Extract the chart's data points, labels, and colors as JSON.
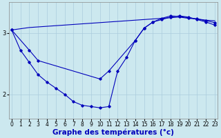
{
  "xlabel": "Graphe des températures (°c)",
  "x_ticks": [
    0,
    1,
    2,
    3,
    4,
    5,
    6,
    7,
    8,
    9,
    10,
    11,
    12,
    13,
    14,
    15,
    16,
    17,
    18,
    19,
    20,
    21,
    22,
    23
  ],
  "y_ticks": [
    2,
    3
  ],
  "ylim": [
    1.6,
    3.5
  ],
  "xlim": [
    -0.3,
    23.3
  ],
  "bg_color": "#cce8ef",
  "line_color": "#0000bb",
  "grid_color": "#aaccdd",
  "line1_x": [
    0,
    1,
    2,
    3,
    4,
    5,
    6,
    7,
    8,
    9,
    10,
    11,
    12,
    13,
    14,
    15,
    16,
    17,
    18,
    19,
    20,
    21,
    22,
    23
  ],
  "line1_y": [
    3.05,
    2.72,
    2.52,
    2.32,
    2.2,
    2.1,
    2.0,
    1.88,
    1.82,
    1.8,
    1.78,
    1.8,
    2.38,
    2.6,
    2.88,
    3.08,
    3.18,
    3.22,
    3.26,
    3.28,
    3.26,
    3.22,
    3.18,
    3.13
  ],
  "line2_x": [
    0,
    1,
    2,
    3,
    4,
    5,
    6,
    7,
    8,
    9,
    10,
    11,
    12,
    13,
    14,
    15,
    16,
    17,
    18,
    19,
    20,
    21,
    22,
    23
  ],
  "line2_y": [
    3.05,
    3.07,
    3.09,
    3.1,
    3.11,
    3.12,
    3.13,
    3.14,
    3.15,
    3.16,
    3.17,
    3.18,
    3.19,
    3.2,
    3.21,
    3.22,
    3.23,
    3.24,
    3.25,
    3.26,
    3.24,
    3.23,
    3.21,
    3.2
  ],
  "line3_x": [
    0,
    2,
    3,
    10,
    11,
    14,
    15,
    16,
    17,
    18,
    19,
    20,
    21,
    22,
    23
  ],
  "line3_y": [
    3.05,
    2.72,
    2.55,
    2.25,
    2.38,
    2.88,
    3.08,
    3.18,
    3.24,
    3.28,
    3.27,
    3.25,
    3.23,
    3.2,
    3.17
  ],
  "marker_size": 1.8
}
